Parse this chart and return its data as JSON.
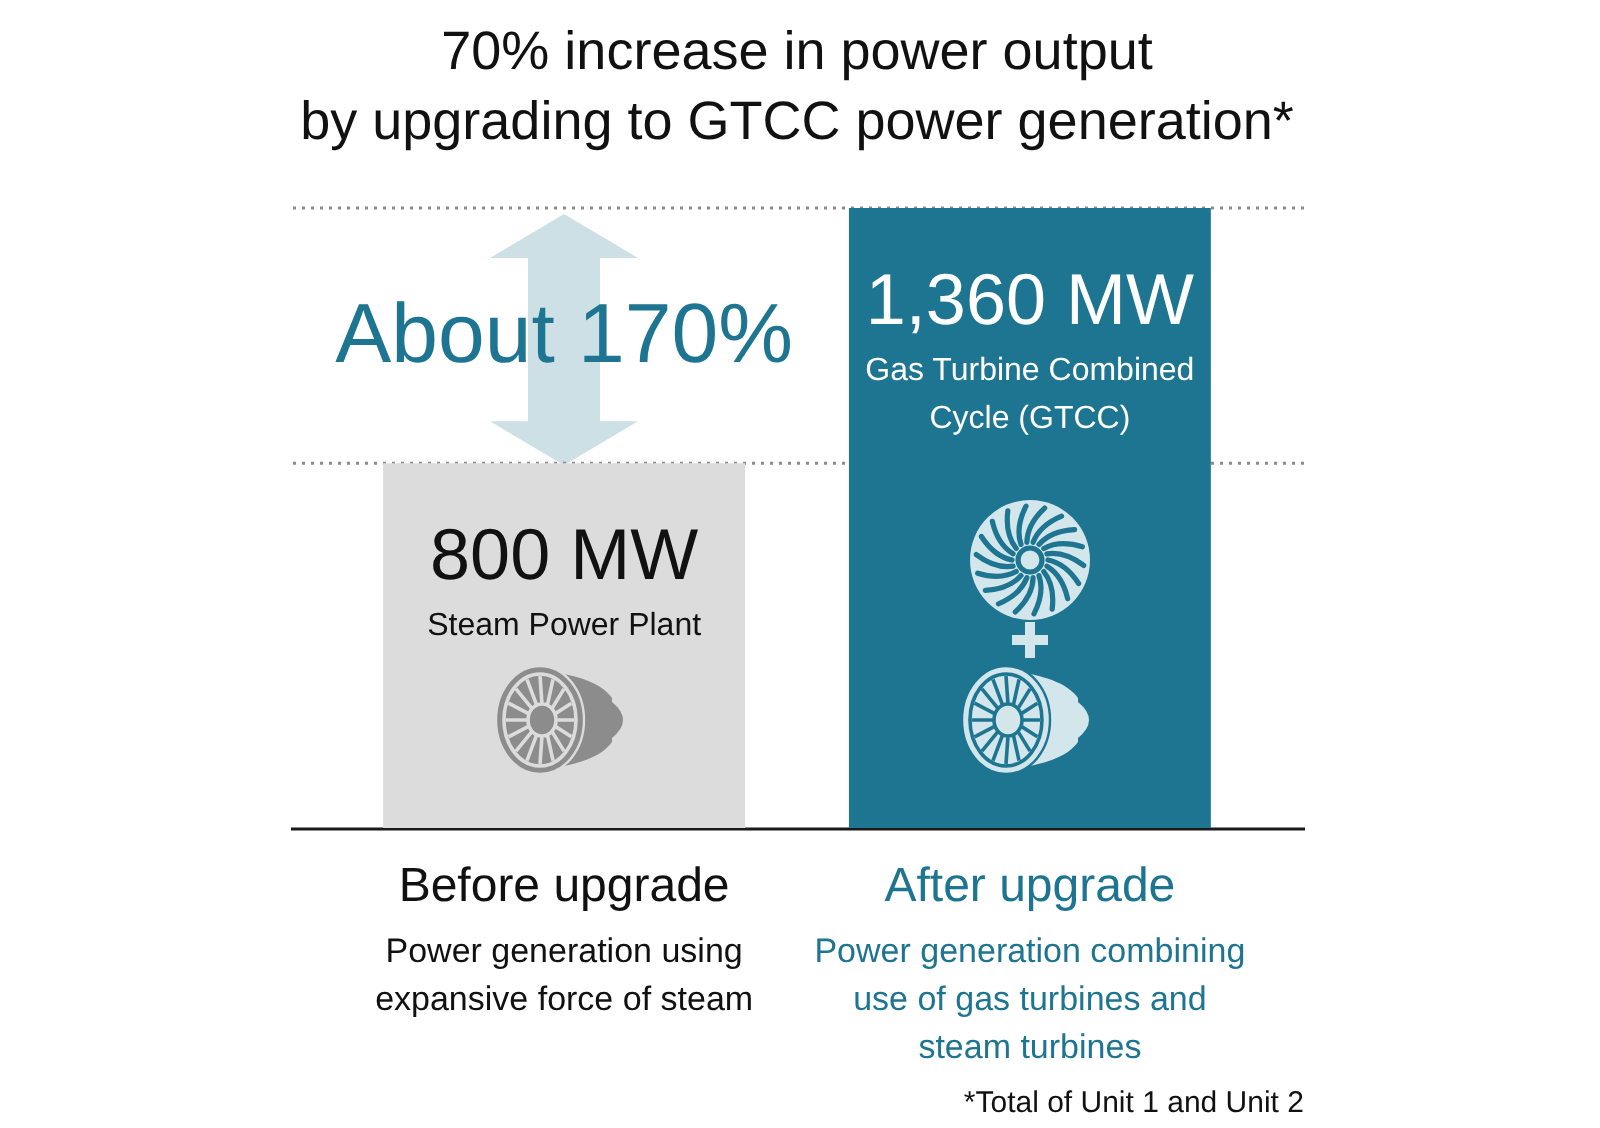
{
  "chart_data": {
    "type": "bar",
    "title": "70% increase in power output\nby upgrading to GTCC power generation*",
    "categories": [
      "Before upgrade",
      "After upgrade"
    ],
    "series": [
      {
        "name": "Steam Power Plant",
        "color": "#dcdcdc",
        "values": [
          800,
          null
        ],
        "value_labels": [
          "800 MW",
          null
        ]
      },
      {
        "name": "Gas Turbine Combined\nCycle (GTCC)",
        "color": "#1e7591",
        "values": [
          null,
          1360
        ],
        "value_labels": [
          null,
          "1,360 MW"
        ]
      }
    ],
    "ref_lines": [
      {
        "axis": "y",
        "value": 800,
        "line_style": "dotted",
        "color": "#8c8c8c"
      },
      {
        "axis": "y",
        "value": 1360,
        "line_style": "dotted",
        "color": "#8c8c8c"
      }
    ],
    "annotations": [
      "About 170%",
      "Power generation using\nexpansive force of steam",
      "Power generation combining\nuse of gas turbines and\nsteam turbines",
      "*Total of Unit 1 and Unit 2"
    ],
    "tick_labels": "x"
  }
}
